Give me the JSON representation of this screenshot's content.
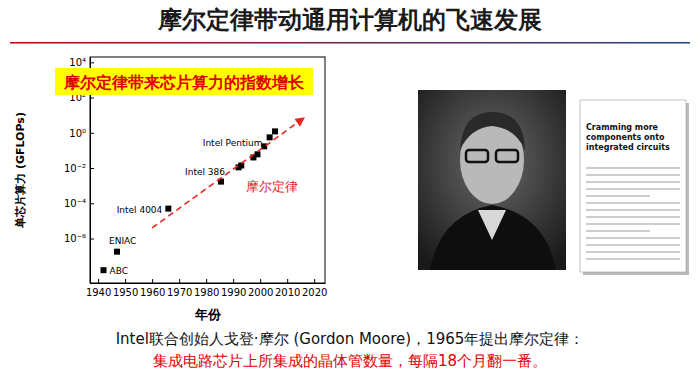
{
  "title": "摩尔定律带动通用计算机的飞速发展",
  "chart_data": {
    "type": "scatter",
    "annotations": [
      "摩尔定律带来芯片算力的指数增长"
    ],
    "x_label": "年份",
    "y_label": "单芯片算力 (GFLOPs)",
    "log": "y",
    "grid": false,
    "xlim": [
      1937,
      2024
    ],
    "xticks": [
      1940,
      1950,
      1960,
      1970,
      1980,
      1990,
      2000,
      2010,
      2020
    ],
    "ylim": [
      3e-09,
      20000
    ],
    "yticks": [
      {
        "value": 1e-06,
        "label": "10⁻⁶"
      },
      {
        "value": 0.0001,
        "label": "10⁻⁴"
      },
      {
        "value": 0.01,
        "label": "10⁻²"
      },
      {
        "value": 1,
        "label": "10⁰"
      },
      {
        "value": 100,
        "label": "10²"
      },
      {
        "value": 10000,
        "label": "10⁴"
      }
    ],
    "series": [
      {
        "type": "scatter",
        "marker": "square",
        "color": "#000000",
        "x": [
          1942,
          1947,
          1966,
          1985.5,
          1992,
          1993,
          1997.5,
          1999,
          2001.5,
          2003.5,
          2005.5
        ],
        "values": [
          1.6e-08,
          1.8e-07,
          5e-05,
          0.0017,
          0.011,
          0.014,
          0.04,
          0.06,
          0.17,
          0.55,
          1.2
        ],
        "labels": [
          "ABC",
          "ENIAC",
          "Intel 4004",
          "Intel 386",
          null,
          null,
          "Intel Pentium",
          null,
          null,
          null,
          null
        ]
      },
      {
        "name": "摩尔定律",
        "type": "line",
        "line_style": "dashed",
        "marker": "arrow",
        "color": "#e8251f",
        "x": [
          1960,
          2016
        ],
        "values": [
          4e-06,
          6.6
        ]
      }
    ]
  },
  "paper": {
    "title": "Cramming more components onto integrated circuits"
  },
  "caption": [
    "Intel联合创始人戈登·摩尔 (Gordon Moore)，1965年提出摩尔定律：",
    "集成电路芯片上所集成的晶体管数量，每隔18个月翻一番。"
  ]
}
